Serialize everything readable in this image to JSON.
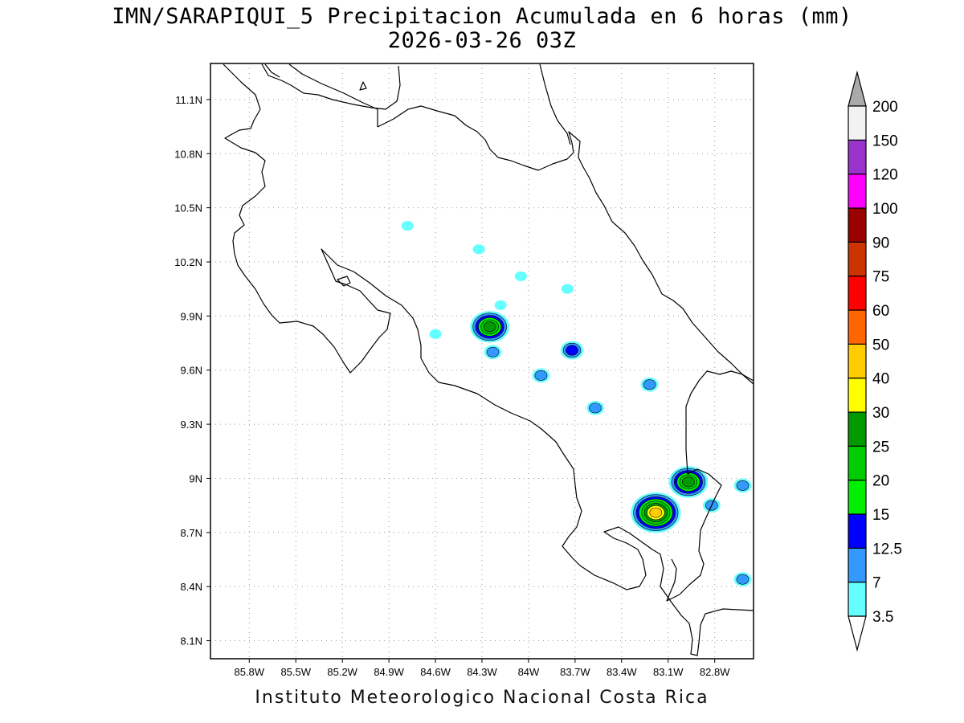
{
  "title_line1": "IMN/SARAPIQUI_5 Precipitacion Acumulada en 6 horas (mm)",
  "title_line2": "2026-03-26 03Z",
  "footer": "Instituto Meteorologico Nacional Costa Rica",
  "map": {
    "lon_range": [
      -86.05,
      -82.55
    ],
    "lat_range": [
      8.0,
      11.3
    ],
    "lon_ticks": [
      {
        "value": -85.8,
        "label": "85.8W"
      },
      {
        "value": -85.5,
        "label": "85.5W"
      },
      {
        "value": -85.2,
        "label": "85.2W"
      },
      {
        "value": -84.9,
        "label": "84.9W"
      },
      {
        "value": -84.6,
        "label": "84.6W"
      },
      {
        "value": -84.3,
        "label": "84.3W"
      },
      {
        "value": -84.0,
        "label": "84W"
      },
      {
        "value": -83.7,
        "label": "83.7W"
      },
      {
        "value": -83.4,
        "label": "83.4W"
      },
      {
        "value": -83.1,
        "label": "83.1W"
      },
      {
        "value": -82.8,
        "label": "82.8W"
      }
    ],
    "lat_ticks": [
      {
        "value": 8.1,
        "label": "8.1N"
      },
      {
        "value": 8.4,
        "label": "8.4N"
      },
      {
        "value": 8.7,
        "label": "8.7N"
      },
      {
        "value": 9.0,
        "label": "9N"
      },
      {
        "value": 9.3,
        "label": "9.3N"
      },
      {
        "value": 9.6,
        "label": "9.6N"
      },
      {
        "value": 9.9,
        "label": "9.9N"
      },
      {
        "value": 10.2,
        "label": "10.2N"
      },
      {
        "value": 10.5,
        "label": "10.5N"
      },
      {
        "value": 10.8,
        "label": "10.8N"
      },
      {
        "value": 11.1,
        "label": "11.1N"
      }
    ],
    "grid": true
  },
  "colorbar": {
    "units": "mm",
    "levels": [
      "3.5",
      "7",
      "12.5",
      "15",
      "20",
      "25",
      "30",
      "40",
      "50",
      "60",
      "75",
      "90",
      "100",
      "120",
      "150",
      "200"
    ],
    "colors": [
      "#66ffff",
      "#3399ff",
      "#0000ff",
      "#00ee00",
      "#00cc00",
      "#009900",
      "#ffff00",
      "#ffcc00",
      "#ff6600",
      "#ff0000",
      "#cc3300",
      "#990000",
      "#ff00ff",
      "#9933cc",
      "#f2f2f2",
      "#aaaaaa"
    ],
    "under_color": "#ffffff"
  },
  "precip_cells": [
    {
      "lon": -84.25,
      "lat": 9.84,
      "peak": 25
    },
    {
      "lon": -84.23,
      "lat": 9.7,
      "peak": 7
    },
    {
      "lon": -84.32,
      "lat": 10.27,
      "peak": 3.5
    },
    {
      "lon": -84.18,
      "lat": 9.96,
      "peak": 3.5
    },
    {
      "lon": -84.05,
      "lat": 10.12,
      "peak": 3.5
    },
    {
      "lon": -83.72,
      "lat": 9.71,
      "peak": 12.5
    },
    {
      "lon": -83.92,
      "lat": 9.57,
      "peak": 7
    },
    {
      "lon": -83.57,
      "lat": 9.39,
      "peak": 7
    },
    {
      "lon": -83.22,
      "lat": 9.52,
      "peak": 7
    },
    {
      "lon": -83.18,
      "lat": 8.81,
      "peak": 40
    },
    {
      "lon": -82.97,
      "lat": 8.98,
      "peak": 25
    },
    {
      "lon": -82.82,
      "lat": 8.85,
      "peak": 7
    },
    {
      "lon": -82.62,
      "lat": 8.96,
      "peak": 7
    },
    {
      "lon": -82.62,
      "lat": 8.44,
      "peak": 7
    },
    {
      "lon": -84.6,
      "lat": 9.8,
      "peak": 3.5
    },
    {
      "lon": -84.78,
      "lat": 10.4,
      "peak": 3.5
    },
    {
      "lon": -83.75,
      "lat": 10.05,
      "peak": 3.5
    }
  ]
}
